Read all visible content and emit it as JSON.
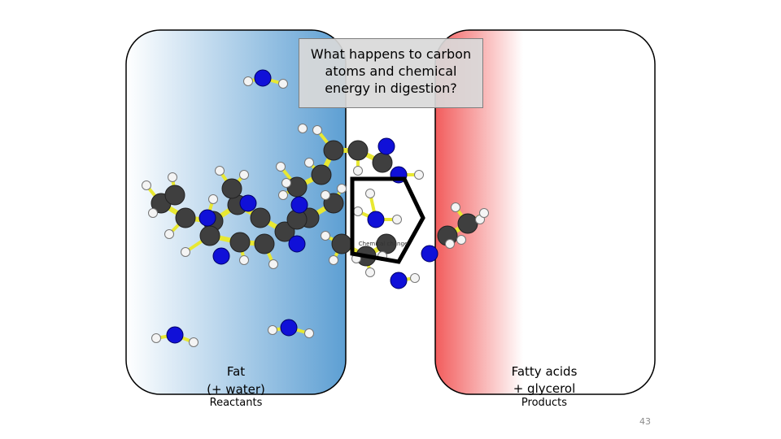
{
  "title": "What happens to carbon atoms and chemical energy in digestion?",
  "reactants": {
    "label_lines": [
      "Fat",
      "(+ water)"
    ],
    "caption": "Reactants"
  },
  "products": {
    "label_lines": [
      "Fatty acids",
      "+ glycerol"
    ],
    "caption": "Products"
  },
  "arrow_label": "Chemical change",
  "slide_number": "43"
}
